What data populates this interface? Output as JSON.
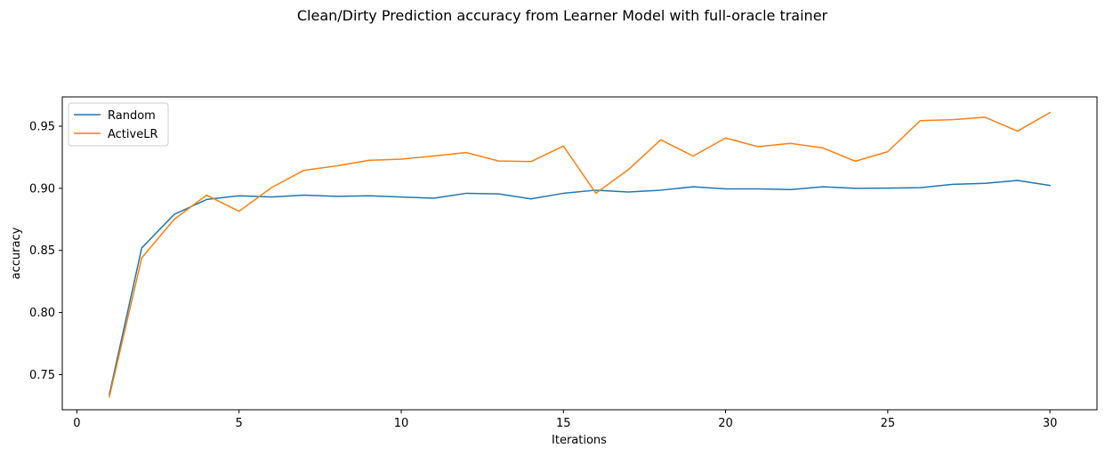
{
  "chart_data": {
    "type": "line",
    "title": "Clean/Dirty Prediction accuracy from Learner Model with full-oracle trainer",
    "xlabel": "Iterations",
    "ylabel": "accuracy",
    "xlim": [
      -0.45,
      31.45
    ],
    "ylim": [
      0.7217,
      0.9736
    ],
    "x_ticks": [
      0,
      5,
      10,
      15,
      20,
      25,
      30
    ],
    "y_ticks": [
      0.75,
      0.8,
      0.85,
      0.9,
      0.95
    ],
    "y_tick_labels": [
      "0.75",
      "0.80",
      "0.85",
      "0.90",
      "0.95"
    ],
    "grid": false,
    "legend_position": "top-left",
    "x": [
      1,
      2,
      3,
      4,
      5,
      6,
      7,
      8,
      9,
      10,
      11,
      12,
      13,
      14,
      15,
      16,
      17,
      18,
      19,
      20,
      21,
      22,
      23,
      24,
      25,
      26,
      27,
      28,
      29,
      30
    ],
    "series": [
      {
        "name": "Random",
        "color": "#1f77b4",
        "values": [
          0.734,
          0.852,
          0.879,
          0.891,
          0.894,
          0.893,
          0.8945,
          0.8935,
          0.894,
          0.893,
          0.892,
          0.896,
          0.8955,
          0.8915,
          0.896,
          0.8985,
          0.897,
          0.8985,
          0.9012,
          0.8995,
          0.8995,
          0.899,
          0.9012,
          0.9,
          0.9002,
          0.9005,
          0.9032,
          0.904,
          0.9063,
          0.9023
        ]
      },
      {
        "name": "ActiveLR",
        "color": "#ff7f0e",
        "values": [
          0.732,
          0.844,
          0.875,
          0.8945,
          0.8815,
          0.9005,
          0.9145,
          0.918,
          0.9225,
          0.9235,
          0.926,
          0.9288,
          0.922,
          0.9215,
          0.934,
          0.896,
          0.915,
          0.939,
          0.926,
          0.9405,
          0.9335,
          0.9362,
          0.9325,
          0.9218,
          0.9295,
          0.9545,
          0.9553,
          0.9572,
          0.946,
          0.961
        ]
      }
    ]
  }
}
